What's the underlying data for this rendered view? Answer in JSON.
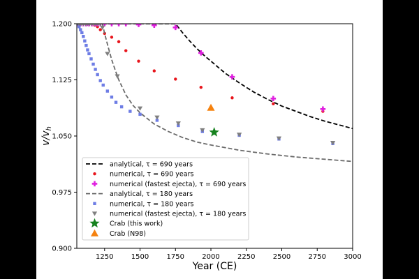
{
  "chart_data": {
    "type": "scatter",
    "title": "",
    "xlabel": "Year (CE)",
    "ylabel": "v/v_h",
    "ylabel_main": "v/v",
    "ylabel_sub": "h",
    "xlim": [
      1054,
      3000
    ],
    "ylim": [
      0.9,
      1.2
    ],
    "xticks": [
      1250,
      1500,
      1750,
      2000,
      2250,
      2500,
      2750,
      3000
    ],
    "xtick_labels": [
      "1250",
      "1500",
      "1750",
      "2000",
      "2250",
      "2500",
      "2750",
      "3000"
    ],
    "yticks": [
      0.9,
      0.975,
      1.05,
      1.125,
      1.2
    ],
    "ytick_labels": [
      "0.900",
      "0.975",
      "1.050",
      "1.125",
      "1.200"
    ],
    "grid": false,
    "legend_position": "lower-left",
    "series": [
      {
        "name": "analytical, τ = 690 years",
        "kind": "dashed-line",
        "color": "#000000",
        "x": [
          1054,
          1750,
          1800,
          1850,
          1900,
          1950,
          2000,
          2100,
          2200,
          2300,
          2400,
          2500,
          2600,
          2700,
          2800,
          2900,
          3000
        ],
        "y": [
          1.2,
          1.2,
          1.188,
          1.177,
          1.167,
          1.158,
          1.15,
          1.134,
          1.121,
          1.109,
          1.099,
          1.09,
          1.083,
          1.076,
          1.07,
          1.065,
          1.06
        ]
      },
      {
        "name": "numerical, τ = 690 years",
        "kind": "circle",
        "color": "#e8141b",
        "x": [
          1054,
          1080,
          1100,
          1120,
          1140,
          1160,
          1180,
          1200,
          1220,
          1250,
          1300,
          1350,
          1400,
          1490,
          1600,
          1750,
          1930,
          2150,
          2440,
          2790
        ],
        "y": [
          1.2,
          1.2,
          1.2,
          1.2,
          1.2,
          1.2,
          1.198,
          1.196,
          1.192,
          1.187,
          1.182,
          1.176,
          1.164,
          1.15,
          1.137,
          1.126,
          1.115,
          1.101,
          1.093,
          1.083
        ]
      },
      {
        "name": "numerical (fastest ejecta), τ = 690 years",
        "kind": "plus",
        "color": "#e020e0",
        "x": [
          1054,
          1080,
          1100,
          1120,
          1140,
          1160,
          1180,
          1200,
          1220,
          1250,
          1300,
          1350,
          1400,
          1490,
          1600,
          1750,
          1930,
          2150,
          2440,
          2790
        ],
        "y": [
          1.2,
          1.2,
          1.2,
          1.2,
          1.2,
          1.2,
          1.2,
          1.2,
          1.2,
          1.2,
          1.2,
          1.2,
          1.2,
          1.199,
          1.198,
          1.195,
          1.161,
          1.129,
          1.1,
          1.086
        ]
      },
      {
        "name": "analytical, τ = 180 years",
        "kind": "dashed-line",
        "color": "#6a6a6a",
        "x": [
          1054,
          1234,
          1250,
          1275,
          1300,
          1325,
          1350,
          1400,
          1450,
          1500,
          1600,
          1700,
          1800,
          1900,
          2000,
          2200,
          2400,
          2600,
          2800,
          3000
        ],
        "y": [
          1.2,
          1.2,
          1.187,
          1.169,
          1.152,
          1.138,
          1.125,
          1.105,
          1.091,
          1.081,
          1.066,
          1.056,
          1.048,
          1.042,
          1.038,
          1.031,
          1.026,
          1.022,
          1.019,
          1.016
        ]
      },
      {
        "name": "numerical, τ = 180 years",
        "kind": "square",
        "color": "#5566e0",
        "x": [
          1054,
          1070,
          1080,
          1090,
          1100,
          1110,
          1120,
          1130,
          1140,
          1155,
          1170,
          1185,
          1200,
          1220,
          1240,
          1270,
          1300,
          1330,
          1370,
          1430,
          1500,
          1620,
          1770,
          1940,
          2200,
          2480,
          2860
        ],
        "y": [
          1.2,
          1.196,
          1.192,
          1.188,
          1.183,
          1.177,
          1.171,
          1.165,
          1.16,
          1.153,
          1.146,
          1.139,
          1.132,
          1.124,
          1.118,
          1.11,
          1.102,
          1.095,
          1.089,
          1.083,
          1.079,
          1.071,
          1.064,
          1.056,
          1.051,
          1.046,
          1.04
        ]
      },
      {
        "name": "numerical (fastest ejecta), τ = 180 years",
        "kind": "triangle-down",
        "color": "#7f7f7f",
        "x": [
          1054,
          1070,
          1085,
          1100,
          1115,
          1130,
          1145,
          1160,
          1175,
          1190,
          1205,
          1220,
          1235,
          1270,
          1340,
          1500,
          1620,
          1770,
          1940,
          2200,
          2480,
          2860
        ],
        "y": [
          1.2,
          1.2,
          1.2,
          1.2,
          1.2,
          1.2,
          1.2,
          1.2,
          1.2,
          1.2,
          1.2,
          1.2,
          1.195,
          1.16,
          1.13,
          1.087,
          1.075,
          1.067,
          1.058,
          1.052,
          1.047,
          1.041
        ]
      },
      {
        "name": "Crab (this work)",
        "kind": "star",
        "color": "#16821e",
        "x": [
          2023
        ],
        "y": [
          1.055
        ]
      },
      {
        "name": "Crab (N98)",
        "kind": "triangle-up",
        "color": "#f5820f",
        "x": [
          2000
        ],
        "y": [
          1.088
        ]
      }
    ]
  }
}
